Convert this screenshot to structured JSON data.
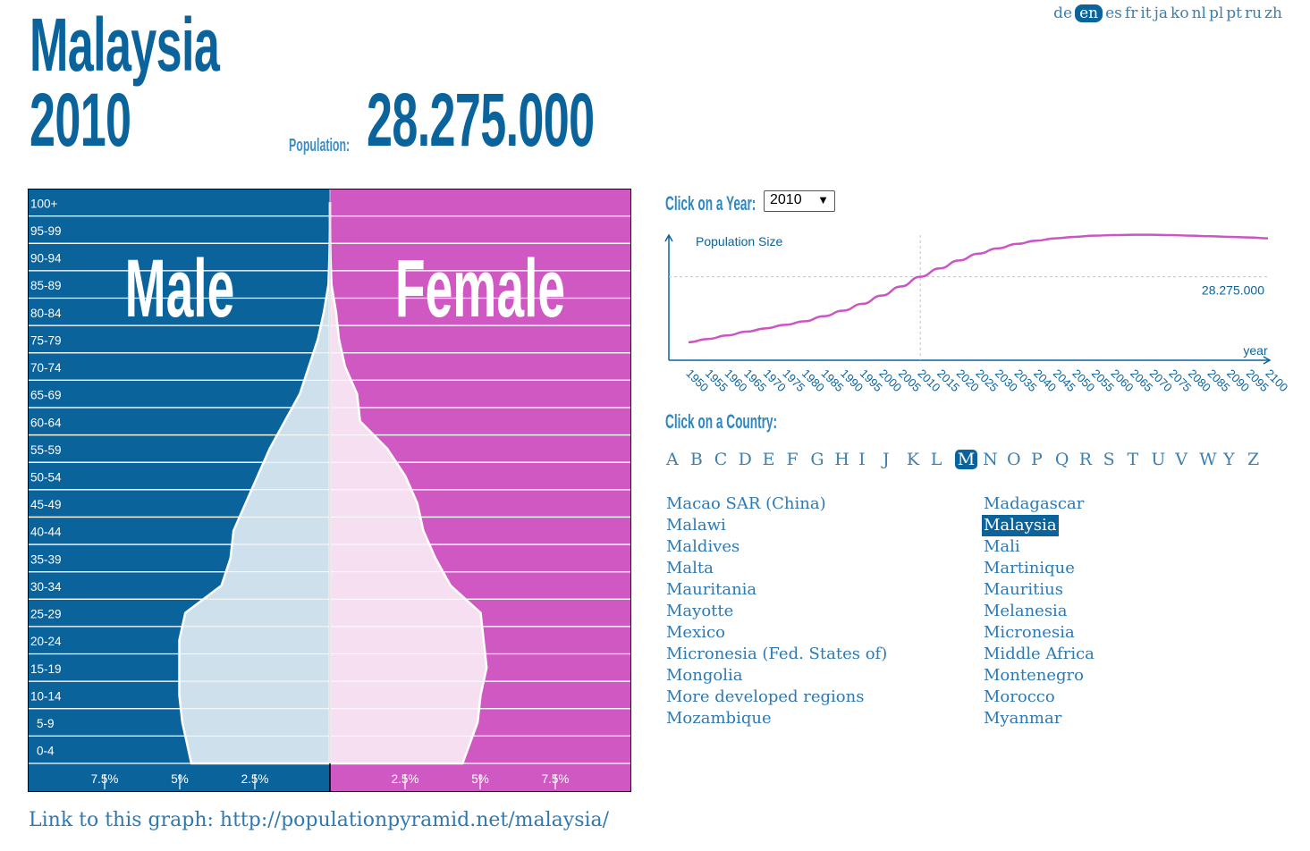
{
  "header": {
    "country": "Malaysia",
    "year": "2010",
    "population_label": "Population:",
    "population_value": "28.275.000"
  },
  "languages": [
    "de",
    "en",
    "es",
    "fr",
    "it",
    "ja",
    "ko",
    "nl",
    "pl",
    "pt",
    "ru",
    "zh"
  ],
  "active_language": "en",
  "colors": {
    "male": "#0b639c",
    "female": "#d058c2",
    "male_fill": "#cde0ec",
    "female_fill": "#f5dff1",
    "curve": "#cc55c4"
  },
  "controls": {
    "year_label": "Click on a Year:",
    "selected_year": "2010",
    "country_label": "Click on a Country:"
  },
  "alphabet": [
    "A",
    "B",
    "C",
    "D",
    "E",
    "F",
    "G",
    "H",
    "I",
    "J",
    "K",
    "L",
    "M",
    "N",
    "O",
    "P",
    "Q",
    "R",
    "S",
    "T",
    "U",
    "V",
    "W",
    "Y",
    "Z"
  ],
  "active_letter": "M",
  "countries_left": [
    "Macao SAR (China)",
    "Malawi",
    "Maldives",
    "Malta",
    "Mauritania",
    "Mayotte",
    "Mexico",
    "Micronesia (Fed. States of)",
    "Mongolia",
    "More developed regions",
    "Mozambique"
  ],
  "countries_right": [
    "Madagascar",
    "Malaysia",
    "Mali",
    "Martinique",
    "Mauritius",
    "Melanesia",
    "Micronesia",
    "Middle Africa",
    "Montenegro",
    "Morocco",
    "Myanmar"
  ],
  "active_country": "Malaysia",
  "link_text": "Link to this graph: http://populationpyramid.net/malaysia/",
  "chart_data": [
    {
      "type": "bar",
      "subtype": "population-pyramid",
      "titles": {
        "male": "Male",
        "female": "Female"
      },
      "age_groups": [
        "0-4",
        "5-9",
        "10-14",
        "15-19",
        "20-24",
        "25-29",
        "30-34",
        "35-39",
        "40-44",
        "45-49",
        "50-54",
        "55-59",
        "60-64",
        "65-69",
        "70-74",
        "75-79",
        "80-84",
        "85-89",
        "90-94",
        "95-99",
        "100+"
      ],
      "series": [
        {
          "name": "Male",
          "values": [
            4.6,
            4.9,
            5.0,
            5.0,
            5.0,
            4.8,
            3.6,
            3.3,
            3.2,
            2.8,
            2.4,
            2.0,
            1.5,
            1.0,
            0.7,
            0.4,
            0.2,
            0.05,
            0.02,
            0.0,
            0.0
          ]
        },
        {
          "name": "Female",
          "values": [
            4.4,
            4.9,
            5.0,
            5.2,
            5.1,
            5.0,
            4.0,
            3.5,
            3.1,
            2.9,
            2.5,
            1.9,
            1.0,
            0.9,
            0.5,
            0.3,
            0.2,
            0.05,
            0.02,
            0.0,
            0.0
          ]
        }
      ],
      "x_ticks": [
        "7.5%",
        "5%",
        "2.5%",
        "2.5%",
        "5%",
        "7.5%"
      ],
      "xlim": [
        0,
        10
      ]
    },
    {
      "type": "line",
      "title": "Population Size",
      "xlabel": "year",
      "x": [
        1950,
        1955,
        1960,
        1965,
        1970,
        1975,
        1980,
        1985,
        1990,
        1995,
        2000,
        2005,
        2010,
        2015,
        2020,
        2025,
        2030,
        2035,
        2040,
        2045,
        2050,
        2055,
        2060,
        2065,
        2070,
        2075,
        2080,
        2085,
        2090,
        2095,
        2100
      ],
      "values": [
        6.1,
        7.2,
        8.4,
        9.7,
        10.8,
        12.0,
        13.2,
        14.9,
        16.8,
        19.1,
        21.9,
        25.0,
        28.275,
        31.1,
        33.8,
        36.1,
        37.9,
        39.4,
        40.5,
        41.3,
        41.8,
        42.2,
        42.4,
        42.5,
        42.5,
        42.4,
        42.2,
        42.0,
        41.8,
        41.6,
        41.3
      ],
      "marked_year": 2010,
      "marked_value_label": "28.275.000",
      "ylim": [
        0,
        43
      ]
    }
  ]
}
